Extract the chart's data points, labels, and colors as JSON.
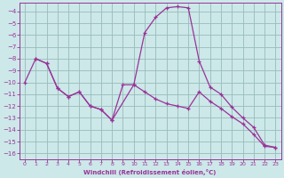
{
  "xlabel": "Windchill (Refroidissement éolien,°C)",
  "background_color": "#cce8e8",
  "grid_color": "#99bbbb",
  "line_color": "#993399",
  "xlim": [
    -0.5,
    23.5
  ],
  "ylim": [
    -16.5,
    -3.3
  ],
  "yticks": [
    -4,
    -5,
    -6,
    -7,
    -8,
    -9,
    -10,
    -11,
    -12,
    -13,
    -14,
    -15,
    -16
  ],
  "xticks": [
    0,
    1,
    2,
    3,
    4,
    5,
    6,
    7,
    8,
    9,
    10,
    11,
    12,
    13,
    14,
    15,
    16,
    17,
    18,
    19,
    20,
    21,
    22,
    23
  ],
  "line1_x": [
    0,
    1,
    2,
    3,
    4,
    5,
    6,
    7,
    8,
    9,
    10,
    11,
    12,
    13,
    14,
    15,
    16,
    17,
    18,
    19,
    20,
    21,
    22,
    23
  ],
  "line1_y": [
    -10.0,
    -8.0,
    -8.4,
    -10.5,
    -11.2,
    -10.8,
    -12.0,
    -12.3,
    -13.2,
    -10.2,
    -10.2,
    -5.8,
    -4.5,
    -3.7,
    -3.6,
    -3.7,
    -8.2,
    -10.4,
    -11.0,
    -12.1,
    -13.0,
    -13.8,
    -15.3,
    -15.5
  ],
  "line2_x": [
    1,
    2,
    3,
    4,
    5,
    6,
    7,
    8,
    10,
    11,
    12,
    13,
    14,
    15,
    16,
    17,
    18,
    19,
    20,
    21,
    22,
    23
  ],
  "line2_y": [
    -8.0,
    -8.4,
    -10.5,
    -11.2,
    -10.8,
    -12.0,
    -12.3,
    -13.2,
    -10.2,
    -10.8,
    -11.4,
    -11.8,
    -12.0,
    -12.2,
    -10.8,
    -11.6,
    -12.2,
    -12.9,
    -13.5,
    -14.4,
    -15.4,
    -15.5
  ]
}
